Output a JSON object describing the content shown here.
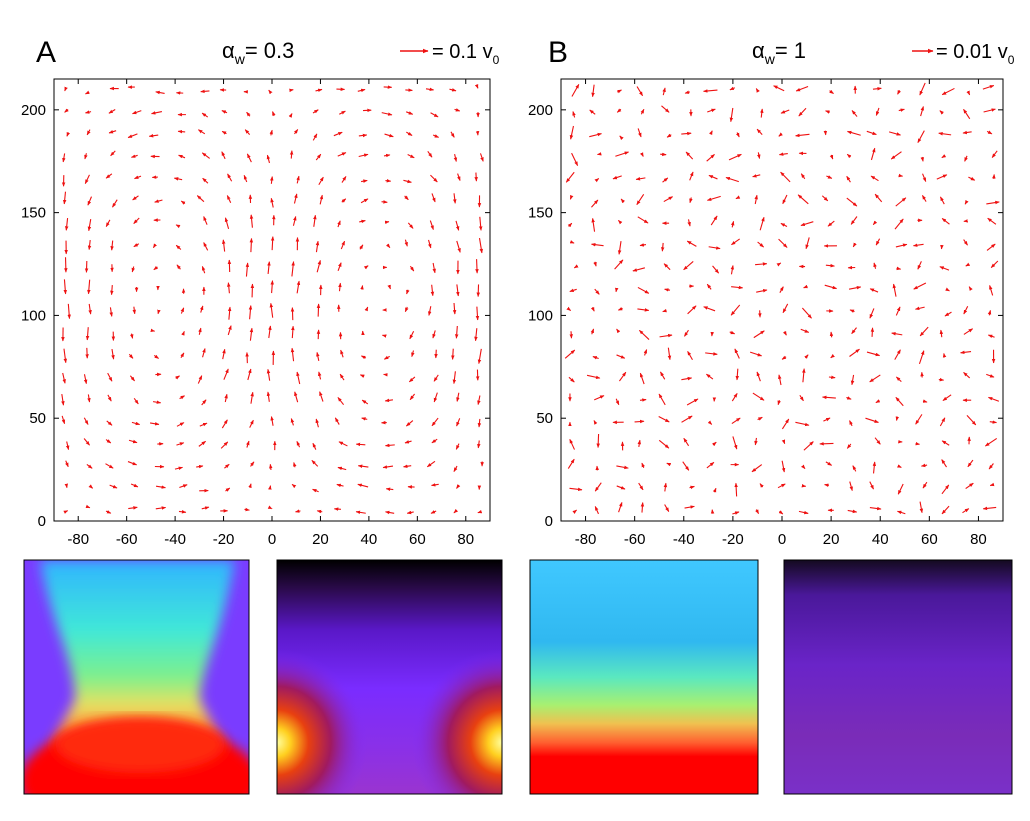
{
  "colors": {
    "arrow": "#ee1111",
    "axis": "#000000",
    "background": "#ffffff"
  },
  "panels": {
    "A": {
      "letter": "A",
      "param_symbol": "α",
      "param_sub": "w",
      "param_value": "= 0.3",
      "scale_label": "= 0.1 v",
      "scale_sub": "0"
    },
    "B": {
      "letter": "B",
      "param_symbol": "α",
      "param_sub": "w",
      "param_value": "= 1",
      "scale_label": "= 0.01 v",
      "scale_sub": "0"
    }
  },
  "heatmaps": [
    {
      "name": "A-density",
      "colormap": "jet",
      "pattern": "funnel"
    },
    {
      "name": "A-field",
      "colormap": "hot-purple",
      "pattern": "corners"
    },
    {
      "name": "B-density",
      "colormap": "jet",
      "pattern": "layered"
    },
    {
      "name": "B-field",
      "colormap": "dark-purple",
      "pattern": "uniform"
    }
  ],
  "chart_data": [
    {
      "type": "quiver",
      "panel": "A",
      "xlim": [
        -90,
        90
      ],
      "ylim": [
        0,
        215
      ],
      "xticks": [
        -80,
        -60,
        -40,
        -20,
        0,
        20,
        40,
        60,
        80
      ],
      "yticks": [
        0,
        50,
        100,
        150,
        200
      ],
      "grid": false,
      "flow": "two counter-rotating vortices: upflow along center line x≈0 and walls, downflow at x≈±45",
      "vortex_centers": [
        [
          -45,
          90
        ],
        [
          45,
          90
        ]
      ],
      "reference_arrow": 0.1
    },
    {
      "type": "quiver",
      "panel": "B",
      "xlim": [
        -90,
        90
      ],
      "ylim": [
        0,
        215
      ],
      "xticks": [
        -80,
        -60,
        -40,
        -20,
        0,
        20,
        40,
        60,
        80
      ],
      "yticks": [
        0,
        50,
        100,
        150,
        200
      ],
      "grid": false,
      "flow": "random, no coherent structure",
      "reference_arrow": 0.01
    }
  ]
}
